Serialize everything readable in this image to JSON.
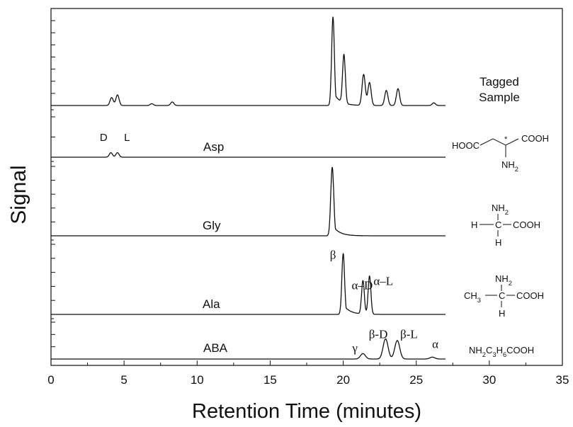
{
  "chart_data": {
    "type": "line",
    "title": "",
    "xlabel": "Retention Time (minutes)",
    "ylabel": "Signal",
    "xlim": [
      0,
      35
    ],
    "xticks": [
      0,
      5,
      10,
      15,
      20,
      25,
      30,
      35
    ],
    "grid": false,
    "traces_end_x": 27,
    "series": [
      {
        "name": "Tagged Sample",
        "label_lines": [
          "Tagged",
          "Sample"
        ],
        "baseline": 0,
        "peaks": [
          {
            "x": 4.15,
            "h": 0.09
          },
          {
            "x": 4.55,
            "h": 0.12
          },
          {
            "x": 6.9,
            "h": 0.02
          },
          {
            "x": 8.3,
            "h": 0.04
          },
          {
            "x": 19.3,
            "h": 1.0
          },
          {
            "x": 20.05,
            "h": 0.55
          },
          {
            "x": 21.4,
            "h": 0.35
          },
          {
            "x": 21.8,
            "h": 0.26
          },
          {
            "x": 22.95,
            "h": 0.17
          },
          {
            "x": 23.75,
            "h": 0.19
          },
          {
            "x": 26.2,
            "h": 0.03
          }
        ],
        "annotations": []
      },
      {
        "name": "Asp",
        "structure": "asp",
        "peaks": [
          {
            "x": 4.1,
            "h": 0.16
          },
          {
            "x": 4.55,
            "h": 0.16
          }
        ],
        "annotations": [
          {
            "text": "D",
            "x": 3.6,
            "level": 0.5
          },
          {
            "text": "L",
            "x": 5.2,
            "level": 0.5
          }
        ]
      },
      {
        "name": "Gly",
        "structure": "gly",
        "peaks": [
          {
            "x": 19.25,
            "h": 1.0
          }
        ],
        "annotations": []
      },
      {
        "name": "Ala",
        "structure": "ala",
        "peaks": [
          {
            "x": 20.0,
            "h": 1.0
          },
          {
            "x": 21.35,
            "h": 0.55
          },
          {
            "x": 21.8,
            "h": 0.63
          }
        ],
        "annotations": [
          {
            "text": "β",
            "x": 19.3,
            "level": 0.88
          },
          {
            "text": "α–D",
            "x": 21.3,
            "level": 0.38
          },
          {
            "text": "α–L",
            "x": 22.75,
            "level": 0.45
          }
        ]
      },
      {
        "name": "ABA",
        "structure": "aba",
        "peaks": [
          {
            "x": 21.35,
            "h": 0.2
          },
          {
            "x": 22.9,
            "h": 0.75
          },
          {
            "x": 23.7,
            "h": 0.69
          },
          {
            "x": 26.1,
            "h": 0.07
          }
        ],
        "annotations": [
          {
            "text": "γ",
            "x": 20.8,
            "level": 0.18
          },
          {
            "text": "β-D",
            "x": 22.4,
            "level": 0.7
          },
          {
            "text": "β-L",
            "x": 24.5,
            "level": 0.7
          },
          {
            "text": "α",
            "x": 26.3,
            "level": 0.33
          }
        ]
      }
    ]
  },
  "structures": {
    "asp": {
      "left": "HOOC",
      "right": "COOH",
      "star": "*",
      "amine": "NH2"
    },
    "gly": {
      "top": "NH2",
      "left": "H",
      "center": "C",
      "right": "COOH",
      "bottom": "H"
    },
    "ala": {
      "top": "NH2",
      "left": "CH3",
      "center": "C",
      "right": "COOH",
      "bottom": "H"
    },
    "aba": {
      "formula": "NH2C3H6COOH"
    }
  }
}
